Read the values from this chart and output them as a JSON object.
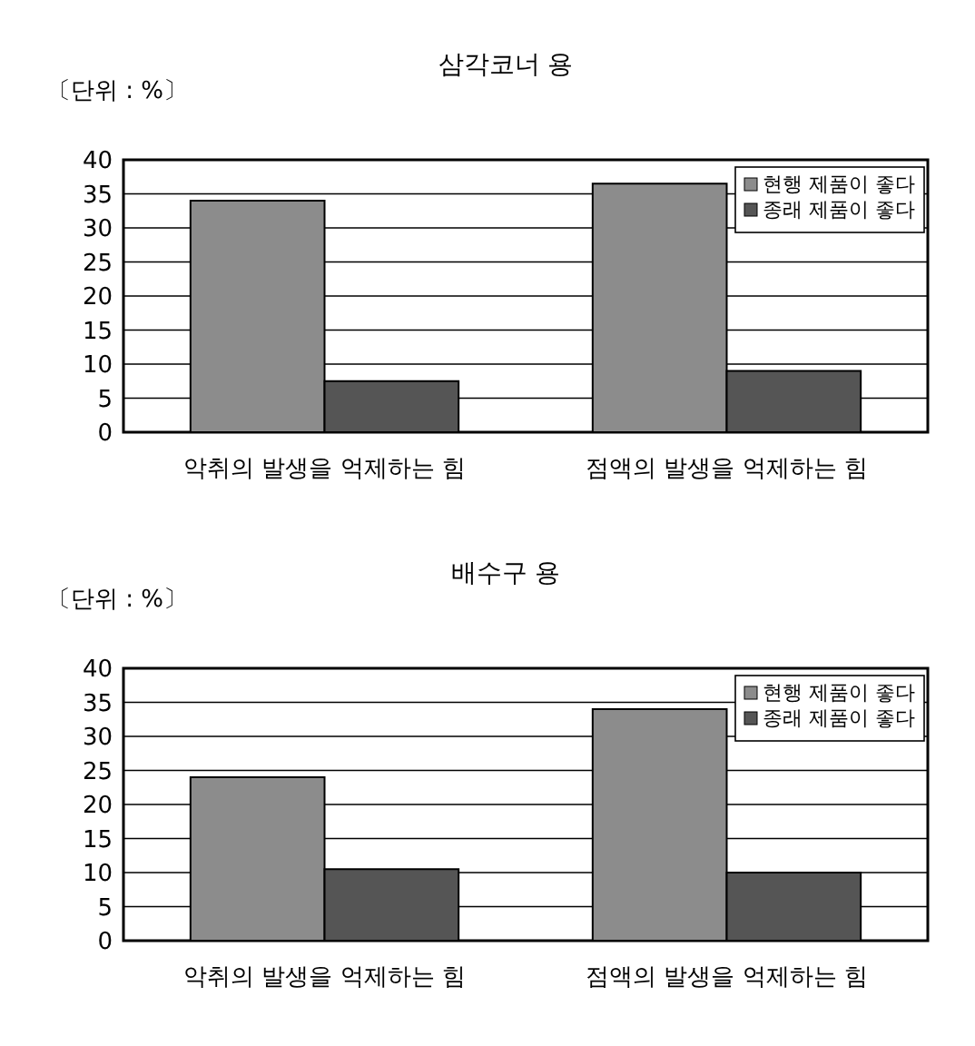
{
  "chart_data": [
    {
      "type": "bar",
      "title": "삼각코너 용",
      "annotations": [
        "〔단위 : %〕"
      ],
      "categories": [
        "악취의 발생을 억제하는 힘",
        "점액의 발생을 억제하는 힘"
      ],
      "series": [
        {
          "name": "현행 제품이 좋다",
          "color": "#8c8c8c",
          "values": [
            34,
            36.5
          ]
        },
        {
          "name": "종래 제품이 좋다",
          "color": "#555555",
          "values": [
            7.5,
            9
          ]
        }
      ],
      "ylim": [
        0,
        40
      ],
      "yticks": [
        0,
        5,
        10,
        15,
        20,
        25,
        30,
        35,
        40
      ],
      "grid": "y",
      "legend": "top right"
    },
    {
      "type": "bar",
      "title": "배수구 용",
      "annotations": [
        "〔단위 : %〕"
      ],
      "categories": [
        "악취의 발생을 억제하는 힘",
        "점액의 발생을 억제하는 힘"
      ],
      "series": [
        {
          "name": "현행 제품이 좋다",
          "color": "#8c8c8c",
          "values": [
            24,
            34
          ]
        },
        {
          "name": "종래 제품이 좋다",
          "color": "#555555",
          "values": [
            10.5,
            10
          ]
        }
      ],
      "ylim": [
        0,
        40
      ],
      "yticks": [
        0,
        5,
        10,
        15,
        20,
        25,
        30,
        35,
        40
      ],
      "grid": "y",
      "legend": "top right"
    }
  ]
}
